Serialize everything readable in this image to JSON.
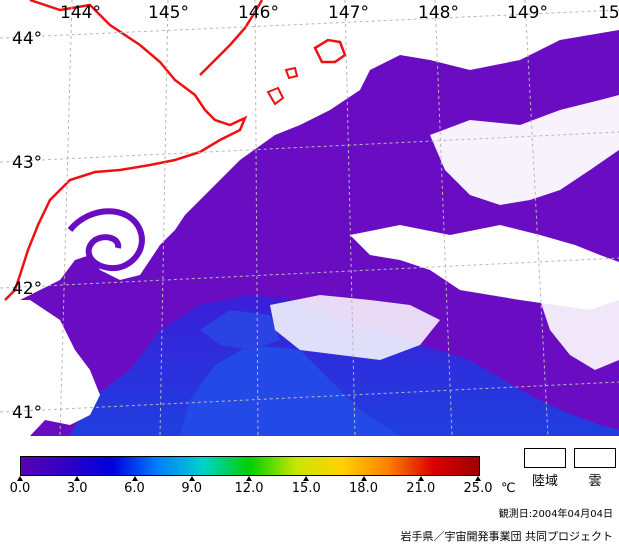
{
  "map": {
    "longitude_labels": [
      "144°",
      "145°",
      "146°",
      "147°",
      "148°",
      "149°",
      "15"
    ],
    "latitude_labels": [
      "44°",
      "43°",
      "42°",
      "41°"
    ],
    "colors": {
      "ocean_cold": "#6a0dc2",
      "ocean_cool": "#3a1fd8",
      "ocean_mid": "#1f3fe0",
      "cloud": "#ffffff",
      "coastline": "#ee1111",
      "grid": "#b8b8b8"
    }
  },
  "legend": {
    "gradient_stops": [
      "#5a00b4",
      "#2f00c8",
      "#0000dc",
      "#0080ff",
      "#00d2c8",
      "#00d000",
      "#c8e600",
      "#ffd200",
      "#ff8200",
      "#dc0000",
      "#a00000"
    ],
    "ticks": [
      "0.0",
      "3.0",
      "6.0",
      "9.0",
      "12.0",
      "15.0",
      "18.0",
      "21.0",
      "25.0"
    ],
    "unit": "℃",
    "land_label": "陸域",
    "cloud_label": "雲"
  },
  "footer": {
    "observation_date": "観測日:2004年04月04日",
    "credit": "岩手県／宇宙開発事業団 共同プロジェクト"
  }
}
